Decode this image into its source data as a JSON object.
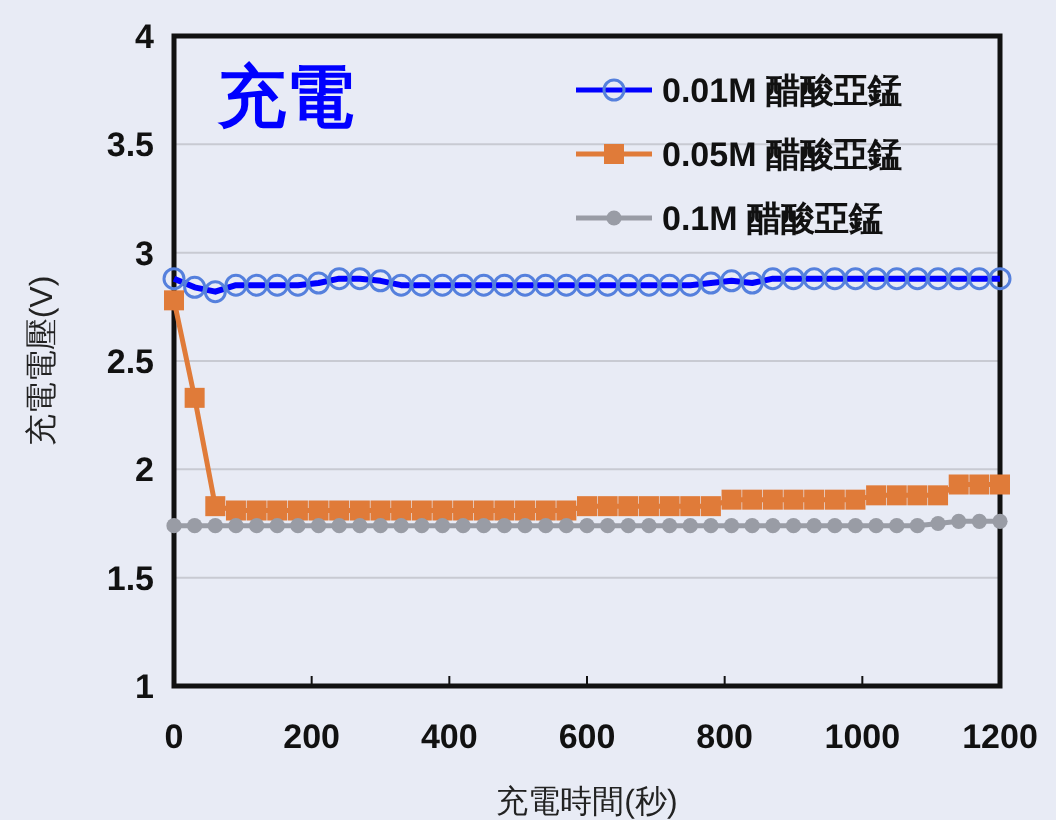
{
  "chart_data": {
    "type": "line",
    "xlabel": "充電時間(秒)",
    "ylabel": "充電電壓(V)",
    "annotations": [
      "充電"
    ],
    "x": [
      0,
      30,
      60,
      90,
      120,
      150,
      180,
      210,
      240,
      270,
      300,
      330,
      360,
      390,
      420,
      450,
      480,
      510,
      540,
      570,
      600,
      630,
      660,
      690,
      720,
      750,
      780,
      810,
      840,
      870,
      900,
      930,
      960,
      990,
      1020,
      1050,
      1080,
      1110,
      1140,
      1170,
      1200
    ],
    "xlim": [
      0,
      1200
    ],
    "xticks": [
      0,
      200,
      400,
      600,
      800,
      1000,
      1200
    ],
    "ylim": [
      1,
      4
    ],
    "yticks": [
      1,
      1.5,
      2,
      2.5,
      3,
      3.5,
      4
    ],
    "grid": "y",
    "legend": "top right",
    "series": [
      {
        "name": "0.01M 醋酸亞錳",
        "color": "#0000ff",
        "marker": "circle",
        "values": [
          2.88,
          2.84,
          2.82,
          2.85,
          2.85,
          2.85,
          2.85,
          2.86,
          2.88,
          2.88,
          2.87,
          2.85,
          2.85,
          2.85,
          2.85,
          2.85,
          2.85,
          2.85,
          2.85,
          2.85,
          2.85,
          2.85,
          2.85,
          2.85,
          2.85,
          2.85,
          2.86,
          2.87,
          2.86,
          2.88,
          2.88,
          2.88,
          2.88,
          2.88,
          2.88,
          2.88,
          2.88,
          2.88,
          2.88,
          2.88,
          2.88
        ]
      },
      {
        "name": "0.05M 醋酸亞錳",
        "color": "#e07b39",
        "marker": "square",
        "values": [
          2.78,
          2.33,
          1.83,
          1.81,
          1.81,
          1.81,
          1.81,
          1.81,
          1.81,
          1.81,
          1.81,
          1.81,
          1.81,
          1.81,
          1.81,
          1.81,
          1.81,
          1.81,
          1.81,
          1.81,
          1.83,
          1.83,
          1.83,
          1.83,
          1.83,
          1.83,
          1.83,
          1.86,
          1.86,
          1.86,
          1.86,
          1.86,
          1.86,
          1.86,
          1.88,
          1.88,
          1.88,
          1.88,
          1.93,
          1.93,
          1.93
        ]
      },
      {
        "name": "0.1M 醋酸亞錳",
        "color": "#999ca5",
        "marker": "circle",
        "values": [
          1.74,
          1.74,
          1.74,
          1.74,
          1.74,
          1.74,
          1.74,
          1.74,
          1.74,
          1.74,
          1.74,
          1.74,
          1.74,
          1.74,
          1.74,
          1.74,
          1.74,
          1.74,
          1.74,
          1.74,
          1.74,
          1.74,
          1.74,
          1.74,
          1.74,
          1.74,
          1.74,
          1.74,
          1.74,
          1.74,
          1.74,
          1.74,
          1.74,
          1.74,
          1.74,
          1.74,
          1.74,
          1.75,
          1.76,
          1.76,
          1.76
        ]
      }
    ]
  }
}
